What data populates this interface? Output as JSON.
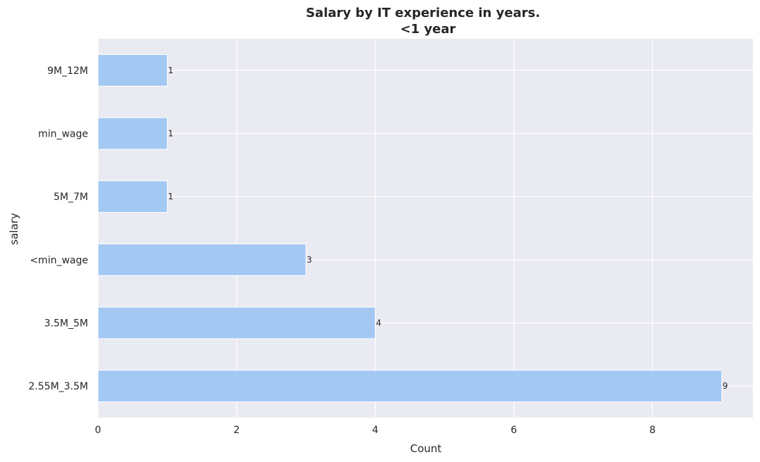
{
  "chart_data": {
    "type": "bar",
    "orientation": "horizontal",
    "title": "Salary by IT experience in years.",
    "subtitle": "<1 year",
    "xlabel": "Count",
    "ylabel": "salary",
    "categories": [
      "2.55M_3.5M",
      "3.5M_5M",
      "<min_wage",
      "5M_7M",
      "min_wage",
      "9M_12M"
    ],
    "values": [
      9,
      4,
      3,
      1,
      1,
      1
    ],
    "xlim": [
      0,
      9.45
    ],
    "xticks": [
      0,
      2,
      4,
      6,
      8
    ],
    "grid": true,
    "legend": "none",
    "colors": {
      "bar": "#a3c8f2",
      "plot_background": "#eaeaf2",
      "grid": "#ffffff",
      "text": "#262626"
    }
  }
}
